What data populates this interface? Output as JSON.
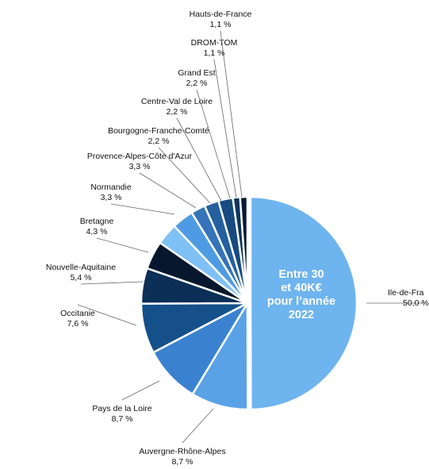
{
  "chart_data": {
    "type": "pie",
    "center_label": [
      "Entre 30",
      "et 40K€",
      "pour l’année",
      "2022"
    ],
    "slices": [
      {
        "name": "Ile-de-France",
        "display_name": "Ile-de-Fra",
        "label": "50,0 %",
        "value": 50.0,
        "color": "#6eb4ef"
      },
      {
        "name": "Auvergne-Rhône-Alpes",
        "label": "8,7 %",
        "value": 8.7,
        "color": "#5aa2e6"
      },
      {
        "name": "Pays de la Loire",
        "label": "8,7 %",
        "value": 8.7,
        "color": "#3a82cf"
      },
      {
        "name": "Occitanie",
        "label": "7,6 %",
        "value": 7.6,
        "color": "#15508a"
      },
      {
        "name": "Nouvelle-Aquitaine",
        "label": "5,4 %",
        "value": 5.4,
        "color": "#0b2f57"
      },
      {
        "name": "Bretagne",
        "label": "4,3 %",
        "value": 4.3,
        "color": "#07182e"
      },
      {
        "name": "Normandie",
        "label": "3,3 %",
        "value": 3.3,
        "color": "#7fc0f5"
      },
      {
        "name": "Provence-Alpes-Côte d'Azur",
        "label": "3,3 %",
        "value": 3.3,
        "color": "#4f9be3"
      },
      {
        "name": "Bourgogne-Franche-Comté",
        "label": "2,2 %",
        "value": 2.2,
        "color": "#3574b8"
      },
      {
        "name": "Centre-Val de Loire",
        "label": "2,2 %",
        "value": 2.2,
        "color": "#25609f"
      },
      {
        "name": "Grand Est",
        "label": "2,2 %",
        "value": 2.2,
        "color": "#174a80"
      },
      {
        "name": "DROM-TOM",
        "label": "1,1 %",
        "value": 1.1,
        "color": "#0d345e"
      },
      {
        "name": "Hauts-de-France",
        "label": "1,1 %",
        "value": 1.1,
        "color": "#061a33"
      }
    ]
  }
}
